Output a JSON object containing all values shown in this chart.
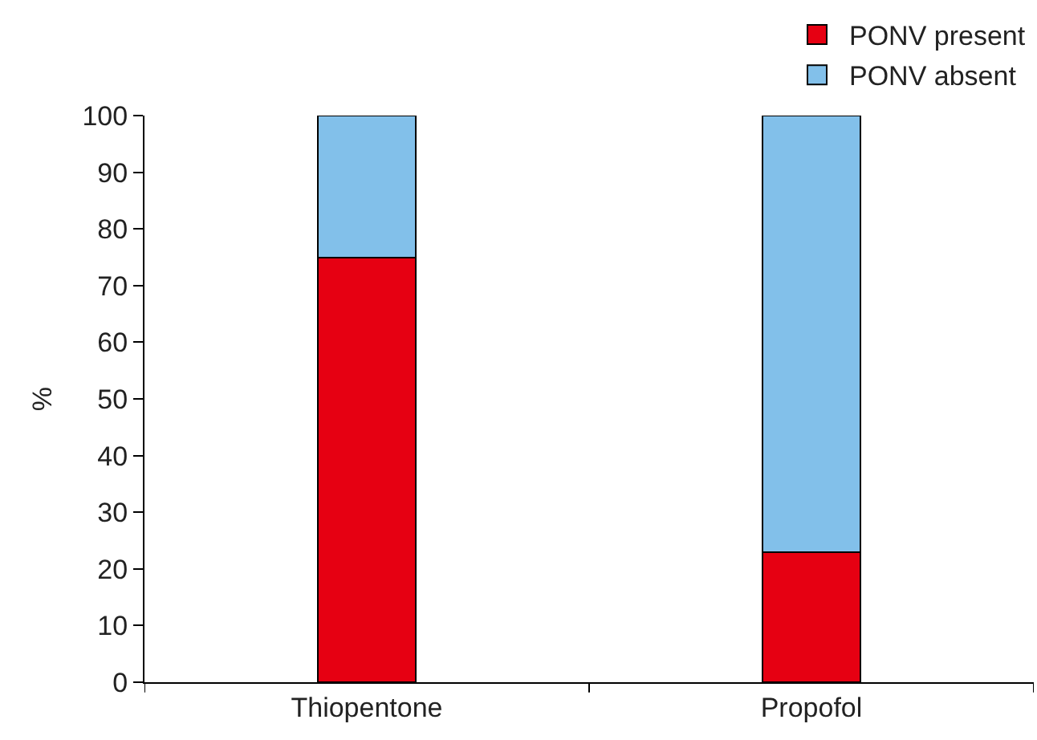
{
  "chart_data": {
    "type": "bar",
    "stacked": true,
    "ylabel": "%",
    "categories": [
      "Thiopentone",
      "Propofol"
    ],
    "series": [
      {
        "name": "PONV present",
        "color": "#e60012",
        "values": [
          75,
          23
        ]
      },
      {
        "name": "PONV absent",
        "color": "#82c0ea",
        "values": [
          25,
          77
        ]
      }
    ],
    "ylim": [
      0,
      100
    ],
    "yticks": [
      0,
      10,
      20,
      30,
      40,
      50,
      60,
      70,
      80,
      90,
      100
    ],
    "grid": false,
    "legend": "top right"
  }
}
